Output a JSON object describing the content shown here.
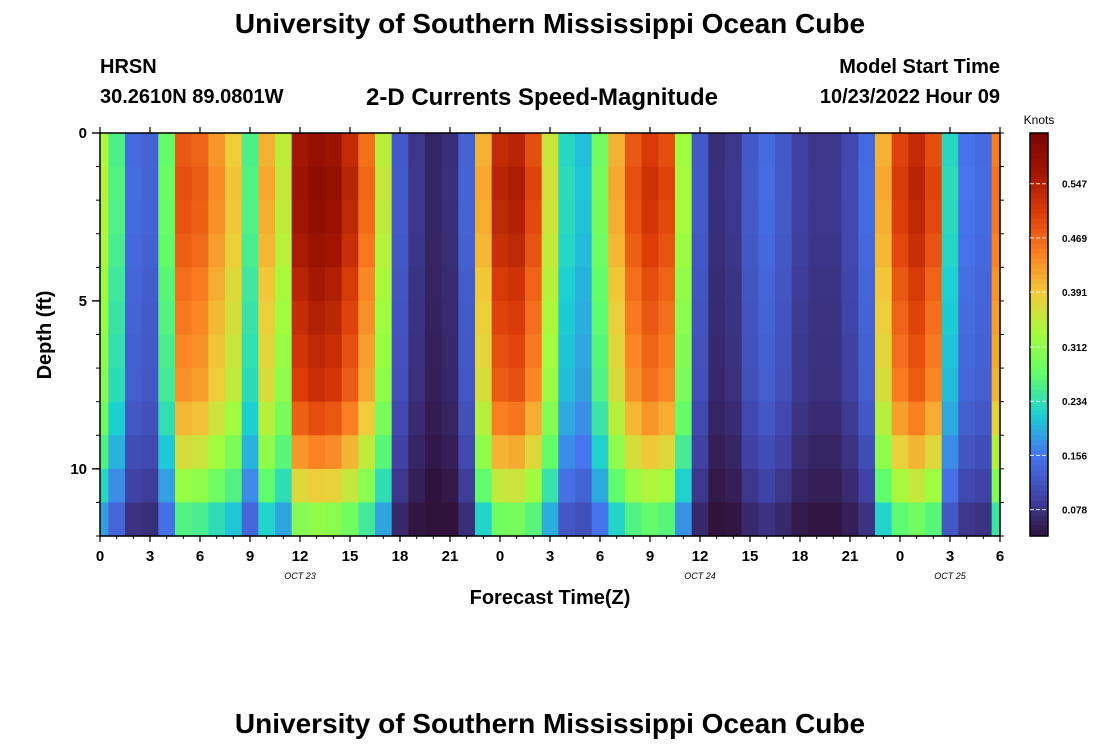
{
  "page": {
    "title": "University of Southern Mississippi Ocean Cube",
    "footer_title": "University of Southern Mississippi Ocean Cube",
    "station": "HRSN",
    "location": "30.2610N  89.0801W",
    "chart_title": "2-D Currents Speed-Magnitude",
    "model_start_label": "Model Start Time",
    "model_start_value": "10/23/2022 Hour 09"
  },
  "chart_data": {
    "type": "heatmap",
    "title": "2-D Currents Speed-Magnitude",
    "xlabel": "Forecast Time(Z)",
    "ylabel": "Depth (ft)",
    "x_ticks": [
      "0",
      "3",
      "6",
      "9",
      "12",
      "15",
      "18",
      "21",
      "0",
      "3",
      "6",
      "9",
      "12",
      "15",
      "18",
      "21",
      "0",
      "3",
      "6"
    ],
    "x_range_hours": [
      0,
      54
    ],
    "date_labels": [
      {
        "text": "OCT 23",
        "hour": 12
      },
      {
        "text": "OCT 24",
        "hour": 36
      },
      {
        "text": "OCT 25",
        "hour": 51
      }
    ],
    "y_ticks": [
      "0",
      "5",
      "10"
    ],
    "y_tick_values": [
      0,
      5,
      10
    ],
    "y_range_ft": [
      0,
      12
    ],
    "colorbar": {
      "label": "Knots",
      "ticks": [
        "0.547",
        "0.469",
        "0.391",
        "0.312",
        "0.234",
        "0.156",
        "0.078"
      ],
      "tick_values": [
        0.547,
        0.469,
        0.391,
        0.312,
        0.234,
        0.156,
        0.078
      ],
      "range": [
        0.04,
        0.62
      ]
    },
    "time_step_hours": 1,
    "depth_rows_ft": [
      0.5,
      1.5,
      2.5,
      3.5,
      4.5,
      5.5,
      6.5,
      7.5,
      8.5,
      9.5,
      10.5,
      11.5
    ],
    "speed_profile_mid_depth_knots": [
      0.33,
      0.25,
      0.14,
      0.13,
      0.27,
      0.47,
      0.46,
      0.42,
      0.38,
      0.25,
      0.4,
      0.34,
      0.55,
      0.57,
      0.56,
      0.52,
      0.45,
      0.34,
      0.12,
      0.08,
      0.06,
      0.07,
      0.13,
      0.4,
      0.52,
      0.53,
      0.48,
      0.35,
      0.22,
      0.2,
      0.28,
      0.4,
      0.47,
      0.5,
      0.48,
      0.32,
      0.12,
      0.07,
      0.08,
      0.12,
      0.14,
      0.12,
      0.09,
      0.08,
      0.08,
      0.1,
      0.14,
      0.4,
      0.49,
      0.52,
      0.48,
      0.22,
      0.15,
      0.14,
      0.44
    ],
    "depth_factor_by_row": [
      1.02,
      1.04,
      1.03,
      1.01,
      0.98,
      0.96,
      0.94,
      0.92,
      0.86,
      0.78,
      0.68,
      0.55
    ]
  }
}
